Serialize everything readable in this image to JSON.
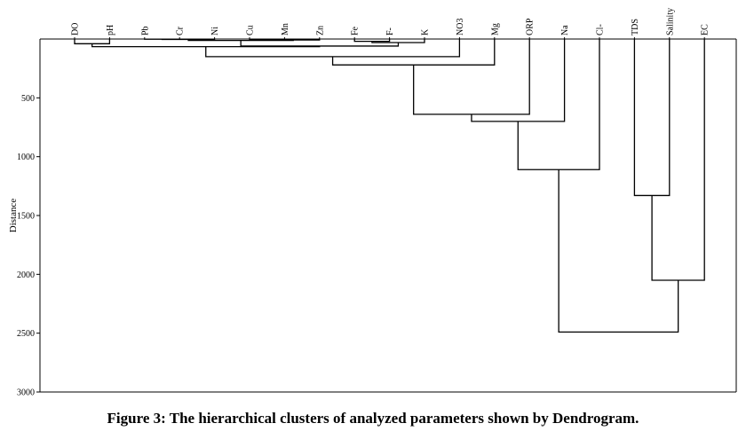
{
  "figure": {
    "caption": "Figure 3: The hierarchical clusters of analyzed parameters shown by Dendrogram."
  },
  "chart_data": {
    "type": "dendrogram",
    "orientation": "inverted",
    "ylabel": "Distance",
    "ylim": [
      0,
      3000
    ],
    "yticks": [
      500,
      1000,
      1500,
      2000,
      2500,
      3000
    ],
    "leaves": [
      "DO",
      "pH",
      "Pb",
      "Cr",
      "Ni",
      "Cu",
      "Mn",
      "Zn",
      "Fe",
      "F-",
      "K",
      "NO3",
      "Mg",
      "ORP",
      "Na",
      "Cl-",
      "TDS",
      "Salinity",
      "EC"
    ],
    "merges": [
      {
        "id": "c1",
        "children": [
          "Pb",
          "Cr"
        ],
        "height": 2
      },
      {
        "id": "c2",
        "children": [
          "c1",
          "Ni"
        ],
        "height": 4
      },
      {
        "id": "c3",
        "children": [
          "Cu",
          "Mn"
        ],
        "height": 4
      },
      {
        "id": "c4",
        "children": [
          "c3",
          "Zn"
        ],
        "height": 8
      },
      {
        "id": "c5",
        "children": [
          "c2",
          "c4"
        ],
        "height": 12
      },
      {
        "id": "c6",
        "children": [
          "Fe",
          "F-"
        ],
        "height": 20
      },
      {
        "id": "c7",
        "children": [
          "c6",
          "K"
        ],
        "height": 30
      },
      {
        "id": "c8",
        "children": [
          "DO",
          "pH"
        ],
        "height": 40
      },
      {
        "id": "c9",
        "children": [
          "c5",
          "c7"
        ],
        "height": 60
      },
      {
        "id": "c10",
        "children": [
          "c8",
          "c9"
        ],
        "height": 65
      },
      {
        "id": "c11",
        "children": [
          "c10",
          "NO3"
        ],
        "height": 150
      },
      {
        "id": "c12",
        "children": [
          "c11",
          "Mg"
        ],
        "height": 220
      },
      {
        "id": "c13",
        "children": [
          "c12",
          "ORP"
        ],
        "height": 640
      },
      {
        "id": "c14",
        "children": [
          "c13",
          "Na"
        ],
        "height": 700
      },
      {
        "id": "c15",
        "children": [
          "c14",
          "Cl-"
        ],
        "height": 1110
      },
      {
        "id": "c16",
        "children": [
          "TDS",
          "Salinity"
        ],
        "height": 1330
      },
      {
        "id": "c17",
        "children": [
          "c16",
          "EC"
        ],
        "height": 2050
      },
      {
        "id": "c18",
        "children": [
          "c15",
          "c17"
        ],
        "height": 2490
      }
    ]
  }
}
